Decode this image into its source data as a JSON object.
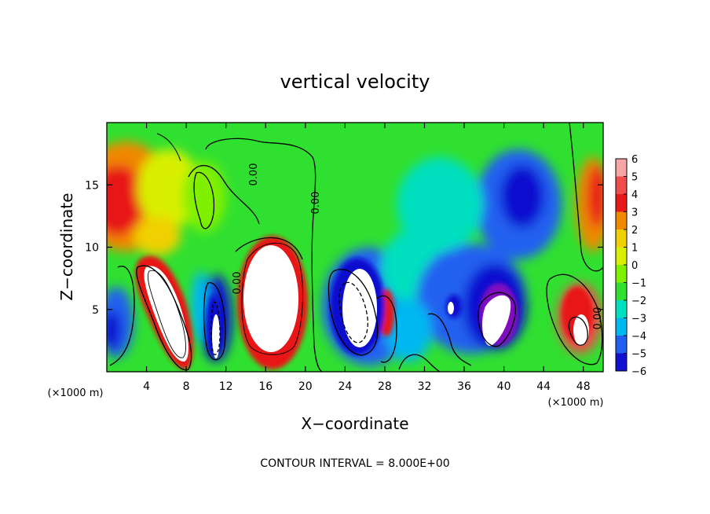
{
  "chart_data": {
    "type": "heatmap",
    "title": "vertical velocity",
    "xlabel": "X−coordinate",
    "ylabel": "Z−coordinate",
    "x_unit_left": "(×1000 m)",
    "x_unit_right": "(×1000 m)",
    "xlim": [
      0,
      50
    ],
    "ylim": [
      0,
      20
    ],
    "x_ticks": [
      4,
      8,
      12,
      16,
      20,
      24,
      28,
      32,
      36,
      40,
      44,
      48
    ],
    "y_ticks": [
      5,
      10,
      15
    ],
    "colorbar": {
      "levels": [
        6,
        5,
        4,
        3,
        2,
        1,
        0,
        -1,
        -2,
        -3,
        -4,
        -5,
        -6
      ],
      "labels": [
        "6",
        "5",
        "4",
        "3",
        "2",
        "1",
        "0",
        "−1",
        "−2",
        "−3",
        "−4",
        "−5",
        "−6"
      ],
      "colors": [
        "#f7a6a6",
        "#f04c4c",
        "#e81818",
        "#f08800",
        "#f0d000",
        "#d8f000",
        "#80f000",
        "#30e030",
        "#00e0c0",
        "#00b8f0",
        "#2060f0",
        "#1010d0",
        "#8010c0"
      ]
    },
    "contour_label": "0.00",
    "contour_interval_text": "CONTOUR INTERVAL = 8.000E+00"
  }
}
